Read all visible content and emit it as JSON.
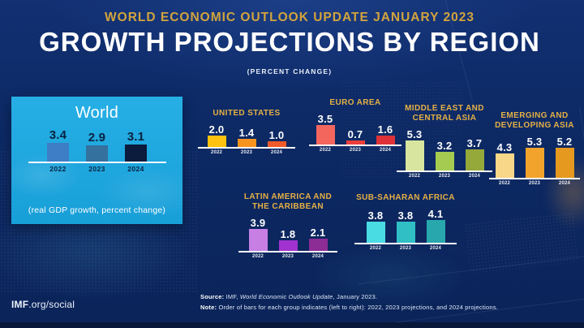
{
  "header": {
    "kicker": "WORLD ECONOMIC OUTLOOK UPDATE JANUARY 2023",
    "title": "GROWTH PROJECTIONS BY REGION",
    "subtitle": "(PERCENT CHANGE)"
  },
  "chart_data": [
    {
      "id": "world",
      "type": "bar",
      "title": "World",
      "categories": [
        "2022",
        "2023",
        "2024"
      ],
      "values": [
        3.4,
        2.9,
        3.1
      ],
      "colors": [
        "#3e7ec6",
        "#34719f",
        "#0b1c3c"
      ],
      "caption": "(real GDP growth, percent change)",
      "ylim": [
        0,
        6
      ],
      "legend": "none",
      "grid": false
    },
    {
      "id": "united-states",
      "type": "bar",
      "title": "UNITED STATES",
      "categories": [
        "2022",
        "2023",
        "2024"
      ],
      "values": [
        2.0,
        1.4,
        1.0
      ],
      "colors": [
        "#ffc20e",
        "#f7941d",
        "#f15a29"
      ],
      "ylim": [
        0,
        6
      ],
      "legend": "none",
      "grid": false
    },
    {
      "id": "euro-area",
      "type": "bar",
      "title": "EURO AREA",
      "categories": [
        "2022",
        "2023",
        "2024"
      ],
      "values": [
        3.5,
        0.7,
        1.6
      ],
      "colors": [
        "#f2665e",
        "#ec3f3c",
        "#de3238"
      ],
      "ylim": [
        0,
        6
      ],
      "legend": "none",
      "grid": false
    },
    {
      "id": "middle-east-and-central-asia",
      "type": "bar",
      "title": "MIDDLE EAST AND\nCENTRAL ASIA",
      "categories": [
        "2022",
        "2023",
        "2024"
      ],
      "values": [
        5.3,
        3.2,
        3.7
      ],
      "colors": [
        "#d8e59e",
        "#a5cb51",
        "#95a93b"
      ],
      "ylim": [
        0,
        6
      ],
      "legend": "none",
      "grid": false
    },
    {
      "id": "emerging-and-developing-asia",
      "type": "bar",
      "title": "EMERGING AND\nDEVELOPING ASIA",
      "categories": [
        "2022",
        "2023",
        "2024"
      ],
      "values": [
        4.3,
        5.3,
        5.2
      ],
      "colors": [
        "#f8d788",
        "#f1a32b",
        "#e5991e"
      ],
      "ylim": [
        0,
        6
      ],
      "legend": "none",
      "grid": false
    },
    {
      "id": "latin-america-and-the-caribbean",
      "type": "bar",
      "title": "LATIN AMERICA AND\nTHE CARIBBEAN",
      "categories": [
        "2022",
        "2023",
        "2024"
      ],
      "values": [
        3.9,
        1.8,
        2.1
      ],
      "colors": [
        "#c77fe3",
        "#a232cf",
        "#8c2c95"
      ],
      "ylim": [
        0,
        6
      ],
      "legend": "none",
      "grid": false
    },
    {
      "id": "sub-saharan-africa",
      "type": "bar",
      "title": "SUB-SAHARAN AFRICA",
      "categories": [
        "2022",
        "2023",
        "2024"
      ],
      "values": [
        3.8,
        3.8,
        4.1
      ],
      "colors": [
        "#49dce2",
        "#2fbfc5",
        "#28a8ac"
      ],
      "ylim": [
        0,
        6
      ],
      "legend": "none",
      "grid": false
    }
  ],
  "footer": {
    "source_label": "Source:",
    "source_pre": " IMF, ",
    "source_italic": "World Economic Outlook Update",
    "source_post": ", January 2023.",
    "note_label": "Note:",
    "note_text": " Order of bars for each group indicates (left to right): 2022, 2023 projections, and 2024 projections.",
    "social_bold": "IMF",
    "social_rest": ".org/social"
  },
  "colors": {
    "background": "#0d2a66",
    "kicker_gold": "#d2a43c",
    "region_label_gold": "#e5b045",
    "world_panel_cyan": "#1ca9e0",
    "baseline_white": "#ffffff"
  }
}
